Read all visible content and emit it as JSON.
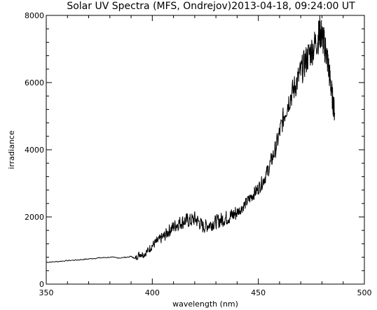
{
  "chart_data": {
    "type": "line",
    "title": "Solar UV Spectra (MFS, Ondrejov)2013-04-18, 09:24:00 UT",
    "xlabel": "wavelength (nm)",
    "ylabel": "irradiance",
    "xlim": [
      350,
      500
    ],
    "ylim": [
      0,
      8000
    ],
    "x_ticks": [
      350,
      400,
      450,
      500
    ],
    "x_tick_labels": [
      "350",
      "400",
      "450",
      "500"
    ],
    "y_ticks": [
      0,
      2000,
      4000,
      6000,
      8000
    ],
    "y_tick_labels": [
      "0",
      "2000",
      "4000",
      "6000",
      "8000"
    ],
    "x_minor_step": 10,
    "y_minor_step": 400,
    "grid": false,
    "line_color": "#000000",
    "series": [
      {
        "x": [
          350,
          355,
          360,
          365,
          370,
          375,
          380,
          385,
          390,
          392,
          394,
          396,
          398,
          400,
          402,
          404,
          406,
          408,
          410,
          412,
          414,
          416,
          418,
          420,
          422,
          424,
          426,
          428,
          430,
          432,
          434,
          436,
          438,
          440,
          442,
          444,
          446,
          448,
          450,
          452,
          454,
          456,
          458,
          460,
          462,
          464,
          466,
          468,
          470,
          472,
          474,
          476,
          478,
          479,
          480,
          481,
          482,
          483,
          484,
          485,
          486
        ],
        "y": [
          650,
          670,
          700,
          720,
          750,
          780,
          800,
          780,
          820,
          760,
          900,
          880,
          1000,
          1150,
          1250,
          1350,
          1450,
          1600,
          1700,
          1800,
          1850,
          1900,
          1880,
          1950,
          1850,
          1700,
          1750,
          1800,
          1850,
          1900,
          1950,
          2000,
          2050,
          2150,
          2250,
          2400,
          2550,
          2700,
          2850,
          3050,
          3300,
          3650,
          4000,
          4500,
          5000,
          5400,
          5700,
          6000,
          6300,
          6600,
          6850,
          7050,
          7300,
          7500,
          7400,
          7150,
          6900,
          6500,
          6000,
          5500,
          5100
        ]
      }
    ]
  }
}
